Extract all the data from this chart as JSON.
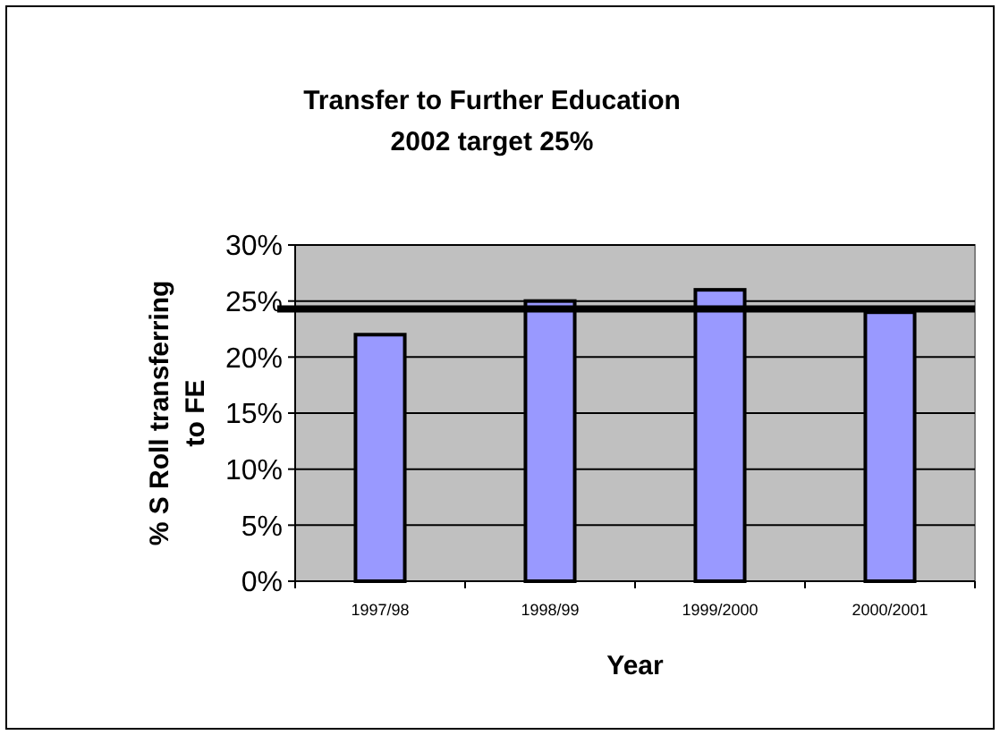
{
  "chart_data": {
    "type": "bar",
    "title": "Transfer to Further Education\n2002 target 25%",
    "xlabel": "Year",
    "ylabel": "% S  Roll transferring\nto FE",
    "categories": [
      "1997/98",
      "1998/99",
      "1999/2000",
      "2000/2001"
    ],
    "values": [
      22,
      25,
      26,
      24
    ],
    "color": "#9999ff",
    "ylim": [
      0,
      30
    ],
    "yticks": [
      {
        "value": 0,
        "label": "0%"
      },
      {
        "value": 5,
        "label": "5%"
      },
      {
        "value": 10,
        "label": "10%"
      },
      {
        "value": 15,
        "label": "15%"
      },
      {
        "value": 20,
        "label": "20%"
      },
      {
        "value": 25,
        "label": "25%"
      },
      {
        "value": 30,
        "label": "30%"
      }
    ],
    "grid": "y",
    "ref_lines": [
      {
        "axis": "y",
        "value": 24.3,
        "color": "#000000"
      }
    ]
  }
}
